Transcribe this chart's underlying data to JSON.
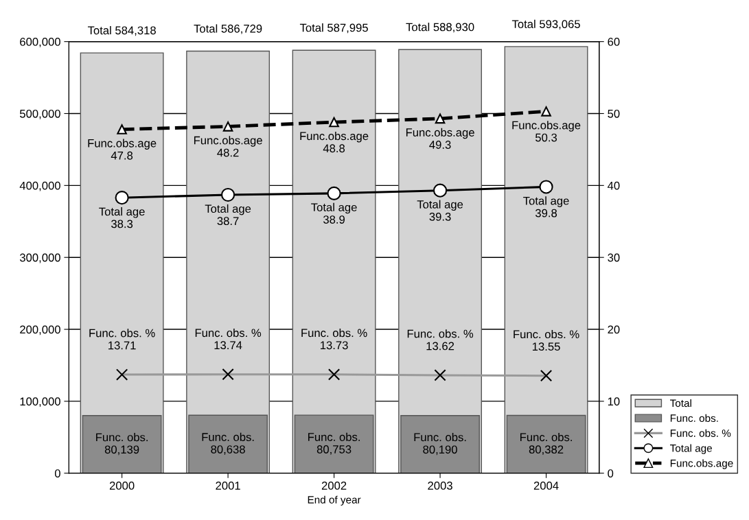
{
  "chart_data": {
    "type": "bar",
    "xlabel": "End of year",
    "categories": [
      "2000",
      "2001",
      "2002",
      "2003",
      "2004"
    ],
    "series": [
      {
        "name": "Total",
        "color": "#d4d4d4",
        "values": [
          584318,
          586729,
          587995,
          588930,
          593065
        ],
        "value_labels": [
          "Total 584,318",
          "Total 586,729",
          "Total 587,995",
          "Total 588,930",
          "Total 593,065"
        ]
      },
      {
        "name": "Func. obs.",
        "color": "#8c8c8c",
        "values": [
          80139,
          80638,
          80753,
          80190,
          80382
        ],
        "value_labels": [
          "Func. obs.\n80,139",
          "Func. obs.\n80,638",
          "Func. obs.\n80,753",
          "Func. obs.\n80,190",
          "Func. obs.\n80,382"
        ]
      },
      {
        "name": "Func. obs. %",
        "type": "line",
        "axis": "y2",
        "color": "#999999",
        "marker": "cross",
        "line_style": "solid",
        "values": [
          13.71,
          13.74,
          13.73,
          13.62,
          13.55
        ],
        "value_labels": [
          "Func. obs. %\n13.71",
          "Func. obs. %\n13.74",
          "Func. obs. %\n13.73",
          "Func. obs. %\n13.62",
          "Func. obs. %\n13.55"
        ]
      },
      {
        "name": "Total age",
        "type": "line",
        "axis": "y2",
        "color": "#000000",
        "marker": "circle",
        "line_style": "solid",
        "values": [
          38.3,
          38.7,
          38.9,
          39.3,
          39.8
        ],
        "value_labels": [
          "Total age\n38.3",
          "Total age\n38.7",
          "Total age\n38.9",
          "Total age\n39.3",
          "Total age\n39.8"
        ]
      },
      {
        "name": "Func.obs.age",
        "type": "line",
        "axis": "y2",
        "color": "#000000",
        "marker": "triangle",
        "line_style": "dashed",
        "values": [
          47.8,
          48.2,
          48.8,
          49.3,
          50.3
        ],
        "value_labels": [
          "Func.obs.age\n47.8",
          "Func.obs.age\n48.2",
          "Func.obs.age\n48.8",
          "Func.obs.age\n49.3",
          "Func.obs.age\n50.3"
        ]
      }
    ],
    "ylim": [
      0,
      600000
    ],
    "yticks": [
      0,
      {
        "value": 100000,
        "label": "100,000"
      },
      {
        "value": 200000,
        "label": "200,000"
      },
      {
        "value": 300000,
        "label": "300,000"
      },
      {
        "value": 400000,
        "label": "400,000"
      },
      {
        "value": 500000,
        "label": "500,000"
      },
      {
        "value": 600000,
        "label": "600,000"
      }
    ],
    "y2lim": [
      0,
      60
    ],
    "y2ticks": [
      0,
      10,
      20,
      30,
      40,
      50,
      60
    ],
    "grid": "y",
    "legend": "bottom right"
  }
}
